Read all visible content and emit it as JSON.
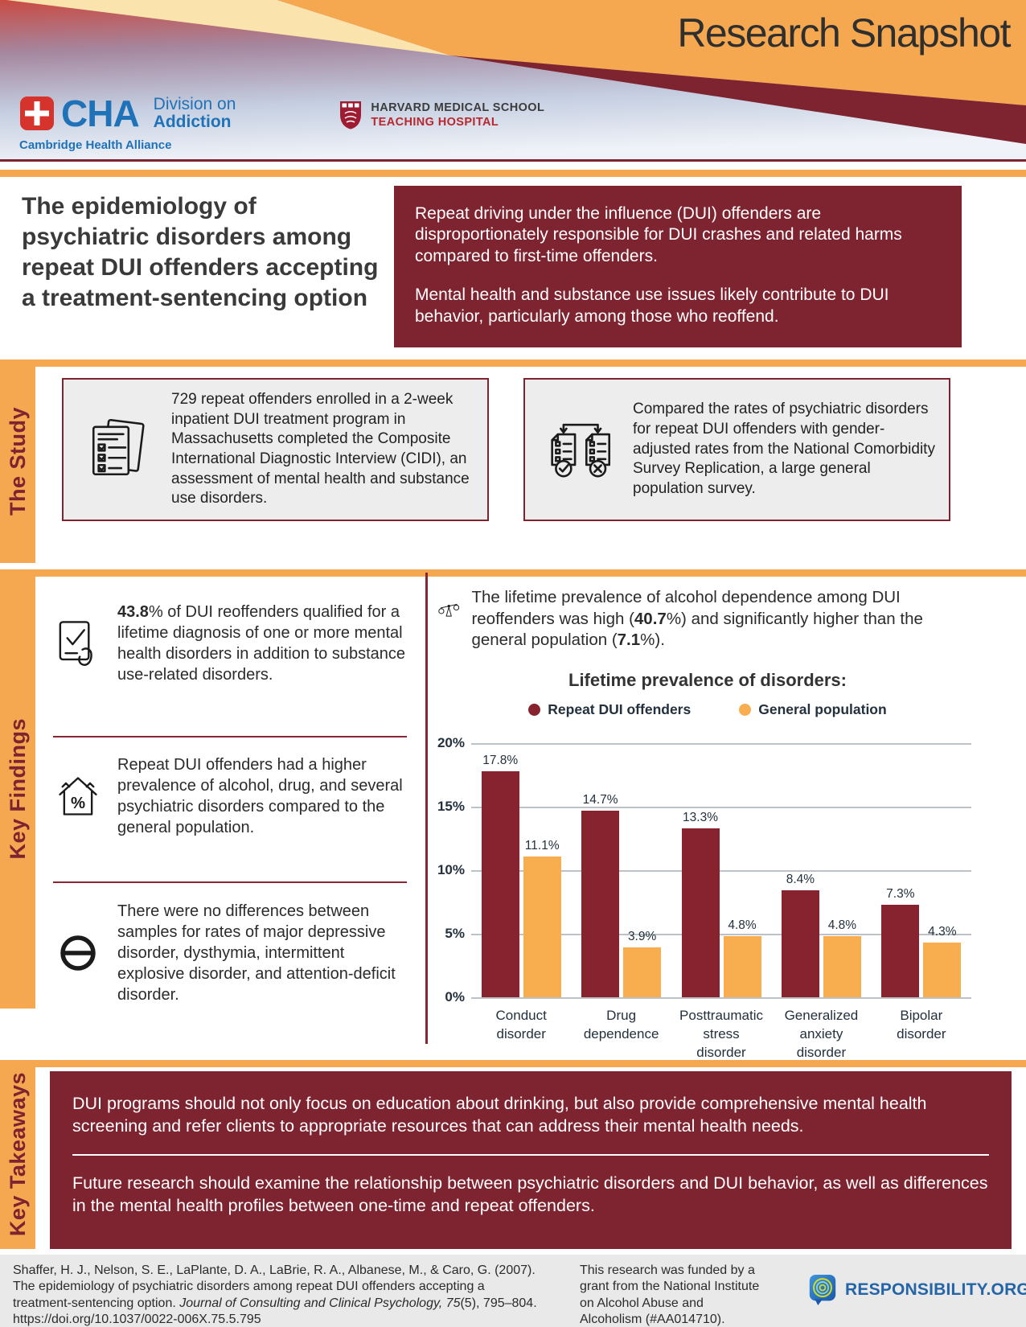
{
  "header": {
    "title": "Research Snapshot",
    "colors": {
      "orange": "#F5A84F",
      "cream": "#FBE3AD",
      "maroon": "#7E2330"
    }
  },
  "logos": {
    "cha": {
      "abbr": "CHA",
      "division_line1": "Division on",
      "division_line2": "Addiction",
      "org_name": "Cambridge Health Alliance"
    },
    "harvard": {
      "line1": "HARVARD MEDICAL SCHOOL",
      "line2": "TEACHING HOSPITAL"
    },
    "responsibility": {
      "brand": "RESPONSIBILITY.ORG"
    }
  },
  "icons": {
    "study_box1": "checklist-pages-icon",
    "study_box2": "compare-documents-icon",
    "finding1": "check-card-icon",
    "finding2": "house-percent-icon",
    "finding3": "no-difference-icon",
    "chart_lead": "balance-scale-icon"
  },
  "intro": {
    "title": "The epidemiology of psychiatric disorders among repeat DUI offenders accepting a treatment-sentencing option",
    "p1": "Repeat driving under the influence (DUI) offenders are disproportionately responsible for DUI crashes and related harms compared to first-time offenders.",
    "p2": "Mental health and substance use issues likely contribute to DUI behavior, particularly among those who reoffend."
  },
  "study": {
    "label": "The Study",
    "box1_text": "729 repeat offenders enrolled in a 2-week inpatient DUI treatment program in Massachusetts completed the Composite International Diagnostic Interview (CIDI), an assessment of mental health and substance use disorders.",
    "box2_text": "Compared the rates of psychiatric disorders for repeat DUI offenders with gender-adjusted rates from the National Comorbidity Survey Replication, a large general population survey."
  },
  "findings": {
    "label": "Key Findings",
    "f1_bold": "43.8",
    "f1_rest": "% of DUI reoffenders qualified for a lifetime diagnosis of one or more mental health disorders in addition to substance use-related disorders.",
    "f2": "Repeat DUI offenders had a higher prevalence of alcohol, drug, and several psychiatric disorders compared to the general population.",
    "f3": "There were no differences between samples for rates of major depressive disorder, dysthymia, intermittent explosive disorder, and attention-deficit disorder.",
    "lead_pre": "The lifetime prevalence of alcohol dependence among DUI reoffenders was high (",
    "lead_bold1": "40.7",
    "lead_mid": "%) and significantly higher than the general population (",
    "lead_bold2": "7.1",
    "lead_post": "%)."
  },
  "chart_data": {
    "type": "bar",
    "title": "Lifetime prevalence of disorders:",
    "categories": [
      "Conduct disorder",
      "Drug dependence",
      "Posttraumatic stress disorder",
      "Generalized anxiety disorder",
      "Bipolar disorder"
    ],
    "series": [
      {
        "name": "Repeat DUI offenders",
        "color": "#87222F",
        "values": [
          17.8,
          14.7,
          13.3,
          8.4,
          7.3
        ]
      },
      {
        "name": "General population",
        "color": "#F8AE4E",
        "values": [
          11.1,
          3.9,
          4.8,
          4.8,
          4.3
        ]
      }
    ],
    "value_suffix": "%",
    "ylim": [
      0,
      20
    ],
    "yticks": [
      "20%",
      "15%",
      "10%",
      "5%",
      "0%"
    ],
    "grid": true,
    "legend_position": "top"
  },
  "takeaways": {
    "label": "Key Takeaways",
    "p1": "DUI programs should not only focus on education about drinking, but also provide comprehensive mental health screening and refer clients to appropriate resources that can address their mental health needs.",
    "p2": "Future research should examine the relationship between psychiatric disorders and DUI behavior, as well as differences in the mental health profiles between one-time and repeat offenders."
  },
  "footer": {
    "citation_pre": "Shaffer, H. J., Nelson, S. E., LaPlante, D. A., LaBrie, R. A., Albanese, M., & Caro, G. (2007). The epidemiology of psychiatric disorders among repeat DUI offenders accepting a treatment-sentencing option. ",
    "citation_italic": "Journal of Consulting and Clinical Psychology, 75",
    "citation_post": "(5), 795–804. https://doi.org/10.1037/0022-006X.75.5.795",
    "funding": "This research was funded by a grant from the National Institute on Alcohol Abuse and Alcoholism (#AA014710)."
  }
}
